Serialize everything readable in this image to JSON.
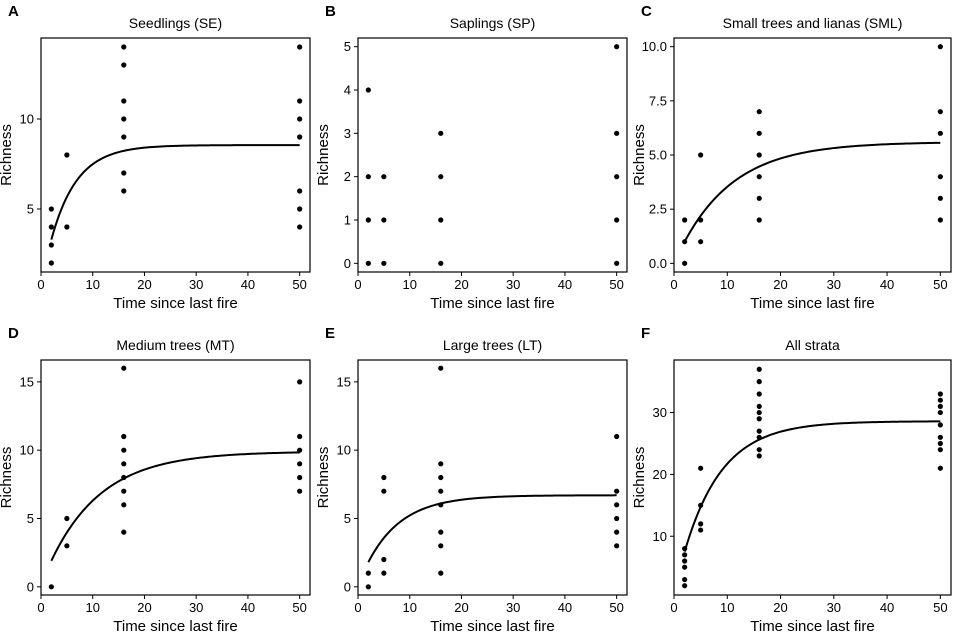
{
  "figure": {
    "description_text": null
  },
  "chart_data": [
    {
      "type": "scatter",
      "panel_letter": "A",
      "title": "Seedlings (SE)",
      "xlabel": "Time since last fire",
      "ylabel": "Richness",
      "xlim": [
        0,
        52
      ],
      "ylim": [
        1.5,
        14.5
      ],
      "xticks": [
        0,
        10,
        20,
        30,
        40,
        50
      ],
      "yticks": [
        5,
        10
      ],
      "points": [
        [
          2,
          2
        ],
        [
          2,
          3
        ],
        [
          2,
          4
        ],
        [
          2,
          5
        ],
        [
          5,
          4
        ],
        [
          5,
          8
        ],
        [
          16,
          6
        ],
        [
          16,
          7
        ],
        [
          16,
          9
        ],
        [
          16,
          10
        ],
        [
          16,
          11
        ],
        [
          16,
          13
        ],
        [
          16,
          14
        ],
        [
          50,
          4
        ],
        [
          50,
          5
        ],
        [
          50,
          6
        ],
        [
          50,
          9
        ],
        [
          50,
          10
        ],
        [
          50,
          11
        ],
        [
          50,
          14
        ]
      ],
      "curve": {
        "model": "asymptotic",
        "asymptote": 8.55,
        "initial": 3.3,
        "rate": 0.2,
        "x_start": 2,
        "x_end": 50
      }
    },
    {
      "type": "scatter",
      "panel_letter": "B",
      "title": "Saplings (SP)",
      "xlabel": "Time since last fire",
      "ylabel": "Richness",
      "xlim": [
        0,
        52
      ],
      "ylim": [
        -0.2,
        5.2
      ],
      "xticks": [
        0,
        10,
        20,
        30,
        40,
        50
      ],
      "yticks": [
        0,
        1,
        2,
        3,
        4,
        5
      ],
      "points": [
        [
          2,
          0
        ],
        [
          2,
          1
        ],
        [
          2,
          2
        ],
        [
          2,
          4
        ],
        [
          5,
          0
        ],
        [
          5,
          1
        ],
        [
          5,
          2
        ],
        [
          16,
          0
        ],
        [
          16,
          1
        ],
        [
          16,
          2
        ],
        [
          16,
          3
        ],
        [
          50,
          0
        ],
        [
          50,
          1
        ],
        [
          50,
          2
        ],
        [
          50,
          3
        ],
        [
          50,
          5
        ]
      ],
      "curve": null
    },
    {
      "type": "scatter",
      "panel_letter": "C",
      "title": "Small trees and lianas (SML)",
      "xlabel": "Time since last fire",
      "ylabel": "Richness",
      "xlim": [
        0,
        52
      ],
      "ylim": [
        -0.4,
        10.4
      ],
      "xticks": [
        0,
        10,
        20,
        30,
        40,
        50
      ],
      "yticks": [
        "0.0",
        "2.5",
        "5.0",
        "7.5",
        "10.0"
      ],
      "points": [
        [
          2,
          0
        ],
        [
          2,
          1
        ],
        [
          2,
          2
        ],
        [
          5,
          1
        ],
        [
          5,
          2
        ],
        [
          5,
          5
        ],
        [
          16,
          2
        ],
        [
          16,
          3
        ],
        [
          16,
          4
        ],
        [
          16,
          5
        ],
        [
          16,
          6
        ],
        [
          16,
          7
        ],
        [
          50,
          2
        ],
        [
          50,
          3
        ],
        [
          50,
          4
        ],
        [
          50,
          6
        ],
        [
          50,
          7
        ],
        [
          50,
          10
        ]
      ],
      "curve": {
        "model": "asymptotic",
        "asymptote": 5.6,
        "initial": 1.0,
        "rate": 0.1,
        "x_start": 2,
        "x_end": 50
      }
    },
    {
      "type": "scatter",
      "panel_letter": "D",
      "title": "Medium trees (MT)",
      "xlabel": "Time since last fire",
      "ylabel": "Richness",
      "xlim": [
        0,
        52
      ],
      "ylim": [
        -0.6,
        16.6
      ],
      "xticks": [
        0,
        10,
        20,
        30,
        40,
        50
      ],
      "yticks": [
        0,
        5,
        10,
        15
      ],
      "points": [
        [
          2,
          0
        ],
        [
          5,
          3
        ],
        [
          5,
          5
        ],
        [
          16,
          4
        ],
        [
          16,
          6
        ],
        [
          16,
          7
        ],
        [
          16,
          8
        ],
        [
          16,
          9
        ],
        [
          16,
          10
        ],
        [
          16,
          11
        ],
        [
          16,
          16
        ],
        [
          50,
          7
        ],
        [
          50,
          8
        ],
        [
          50,
          9
        ],
        [
          50,
          10
        ],
        [
          50,
          11
        ],
        [
          50,
          15
        ]
      ],
      "curve": {
        "model": "asymptotic",
        "asymptote": 9.9,
        "initial": 1.9,
        "rate": 0.1,
        "x_start": 2,
        "x_end": 50
      }
    },
    {
      "type": "scatter",
      "panel_letter": "E",
      "title": "Large trees (LT)",
      "xlabel": "Time since last fire",
      "ylabel": "Richness",
      "xlim": [
        0,
        52
      ],
      "ylim": [
        -0.6,
        16.6
      ],
      "xticks": [
        0,
        10,
        20,
        30,
        40,
        50
      ],
      "yticks": [
        0,
        5,
        10,
        15
      ],
      "points": [
        [
          2,
          0
        ],
        [
          2,
          1
        ],
        [
          5,
          1
        ],
        [
          5,
          2
        ],
        [
          5,
          7
        ],
        [
          5,
          8
        ],
        [
          16,
          1
        ],
        [
          16,
          3
        ],
        [
          16,
          4
        ],
        [
          16,
          6
        ],
        [
          16,
          7
        ],
        [
          16,
          8
        ],
        [
          16,
          9
        ],
        [
          16,
          16
        ],
        [
          50,
          3
        ],
        [
          50,
          4
        ],
        [
          50,
          5
        ],
        [
          50,
          6
        ],
        [
          50,
          7
        ],
        [
          50,
          11
        ]
      ],
      "curve": {
        "model": "asymptotic",
        "asymptote": 6.7,
        "initial": 1.8,
        "rate": 0.15,
        "x_start": 2,
        "x_end": 50
      }
    },
    {
      "type": "scatter",
      "panel_letter": "F",
      "title": "All strata",
      "xlabel": "Time since last fire",
      "ylabel": "Richness",
      "xlim": [
        0,
        52
      ],
      "ylim": [
        0.5,
        38.5
      ],
      "xticks": [
        0,
        10,
        20,
        30,
        40,
        50
      ],
      "yticks": [
        10,
        20,
        30
      ],
      "points": [
        [
          2,
          2
        ],
        [
          2,
          3
        ],
        [
          2,
          5
        ],
        [
          2,
          6
        ],
        [
          2,
          7
        ],
        [
          2,
          8
        ],
        [
          5,
          11
        ],
        [
          5,
          12
        ],
        [
          5,
          15
        ],
        [
          5,
          21
        ],
        [
          16,
          23
        ],
        [
          16,
          24
        ],
        [
          16,
          26
        ],
        [
          16,
          27
        ],
        [
          16,
          29
        ],
        [
          16,
          30
        ],
        [
          16,
          31
        ],
        [
          16,
          33
        ],
        [
          16,
          35
        ],
        [
          16,
          37
        ],
        [
          50,
          21
        ],
        [
          50,
          24
        ],
        [
          50,
          25
        ],
        [
          50,
          26
        ],
        [
          50,
          28
        ],
        [
          50,
          30
        ],
        [
          50,
          31
        ],
        [
          50,
          32
        ],
        [
          50,
          33
        ]
      ],
      "curve": {
        "model": "asymptotic",
        "asymptote": 28.6,
        "initial": 7.5,
        "rate": 0.14,
        "x_start": 2,
        "x_end": 50
      }
    }
  ]
}
